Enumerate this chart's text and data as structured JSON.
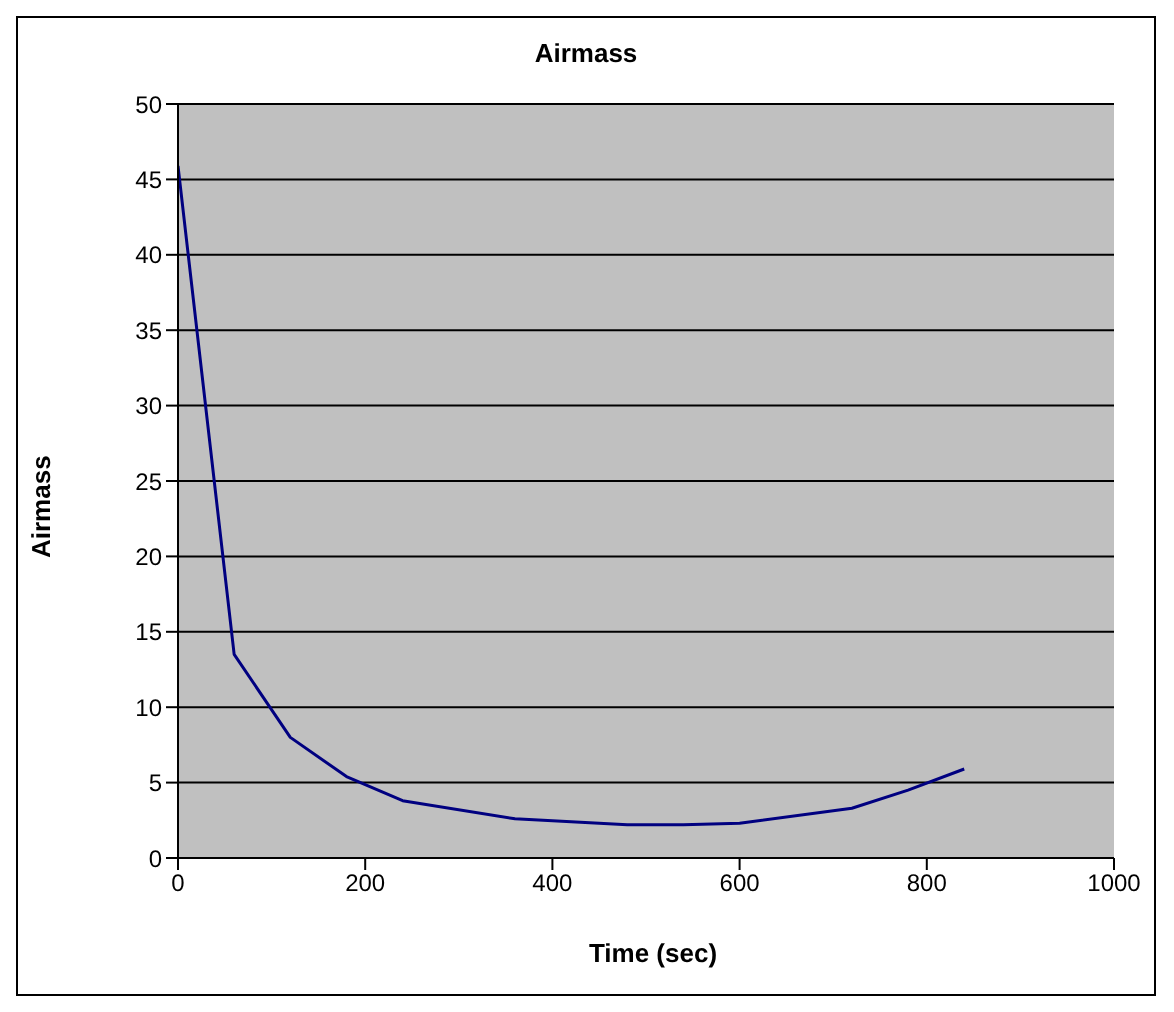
{
  "chart_data": {
    "type": "line",
    "title": "Airmass",
    "xlabel": "Time (sec)",
    "ylabel": "Airmass",
    "x": [
      0,
      60,
      120,
      180,
      240,
      360,
      480,
      540,
      600,
      720,
      780,
      840
    ],
    "series": [
      {
        "color": "#000080",
        "values": [
          45.9,
          13.5,
          8.0,
          5.4,
          3.8,
          2.6,
          2.2,
          2.2,
          2.3,
          3.3,
          4.5,
          5.9
        ]
      }
    ],
    "xlim": [
      0,
      1000
    ],
    "xticks": [
      0,
      200,
      400,
      600,
      800,
      1000
    ],
    "ylim": [
      0,
      50
    ],
    "yticks": [
      0,
      5,
      10,
      15,
      20,
      25,
      30,
      35,
      40,
      45,
      50
    ],
    "grid": "y",
    "legend": false,
    "marker": "none",
    "line_style": "solid"
  }
}
